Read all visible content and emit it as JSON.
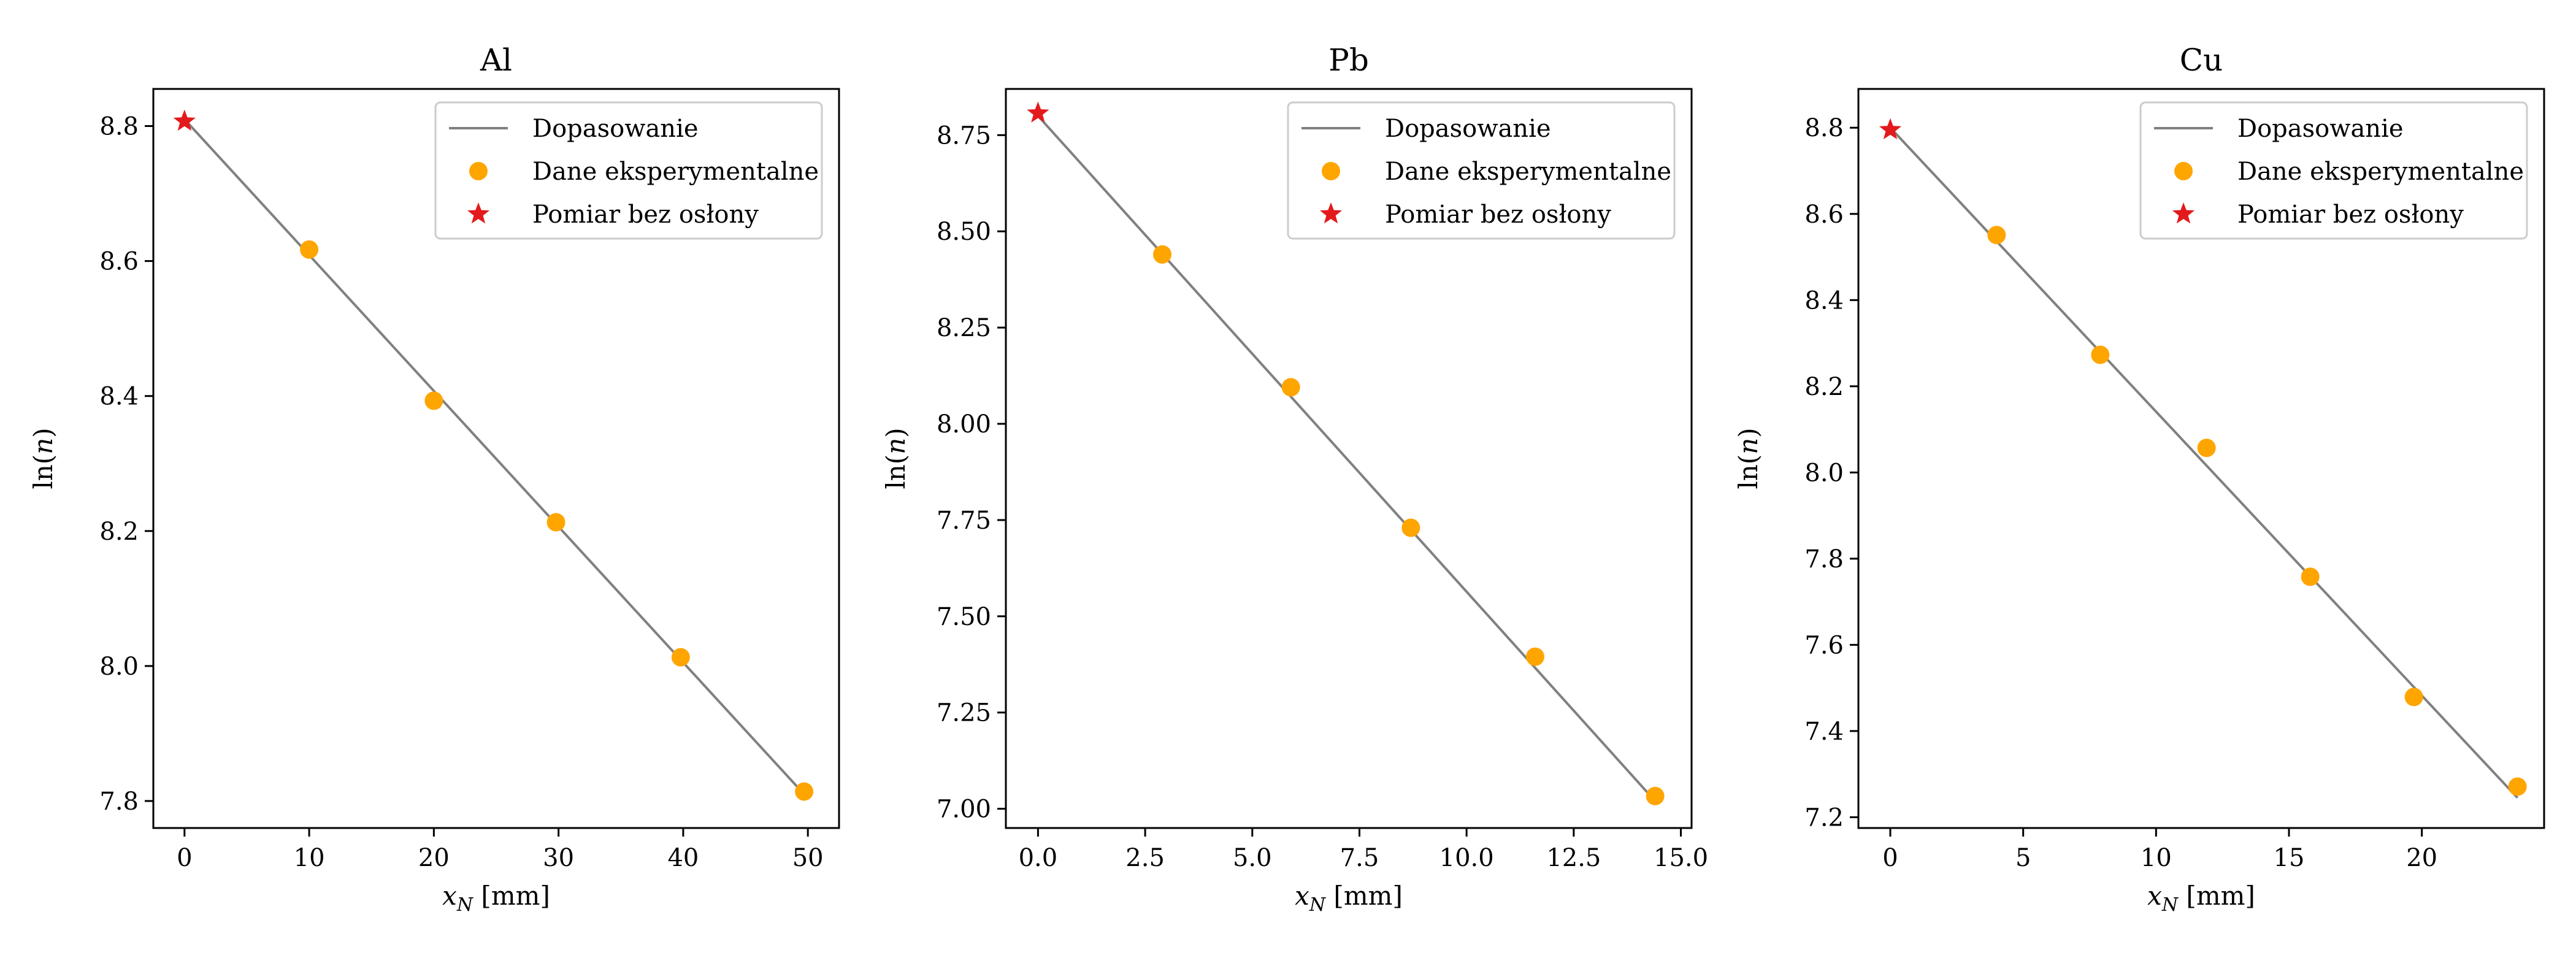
{
  "colors": {
    "fit_line": "#808080",
    "experimental": "#ffa500",
    "unshielded": "#e31a1c",
    "axes": "#000000",
    "background": "#ffffff"
  },
  "chart_data": [
    {
      "type": "scatter",
      "title": "Al",
      "xlabel": "x_N [mm]",
      "ylabel": "ln(n)",
      "xlim": [
        -2.5,
        52.5
      ],
      "ylim": [
        7.76,
        8.855
      ],
      "xticks": [
        0,
        10,
        20,
        30,
        40,
        50
      ],
      "xtick_labels": [
        "0",
        "10",
        "20",
        "30",
        "40",
        "50"
      ],
      "yticks": [
        7.8,
        8.0,
        8.2,
        8.4,
        8.6,
        8.8
      ],
      "ytick_labels": [
        "7.8",
        "8.0",
        "8.2",
        "8.4",
        "8.6",
        "8.8"
      ],
      "grid": false,
      "legend_position": "top-right",
      "series": [
        {
          "name": "Dopasowanie",
          "kind": "line",
          "x": [
            0,
            49.7
          ],
          "y": [
            8.81,
            7.81
          ]
        },
        {
          "name": "Dane eksperymentalne",
          "kind": "scatter",
          "marker": "circle",
          "x": [
            10,
            20,
            29.8,
            39.8,
            49.7
          ],
          "y": [
            8.617,
            8.393,
            8.213,
            8.013,
            7.814
          ]
        },
        {
          "name": "Pomiar bez osłony",
          "kind": "scatter",
          "marker": "star",
          "x": [
            0
          ],
          "y": [
            8.807
          ]
        }
      ]
    },
    {
      "type": "scatter",
      "title": "Pb",
      "xlabel": "x_N [mm]",
      "ylabel": "ln(n)",
      "xlim": [
        -0.75,
        15.25
      ],
      "ylim": [
        6.95,
        8.87
      ],
      "xticks": [
        0,
        2.5,
        5,
        7.5,
        10,
        12.5,
        15
      ],
      "xtick_labels": [
        "0.0",
        "2.5",
        "5.0",
        "7.5",
        "10.0",
        "12.5",
        "15.0"
      ],
      "yticks": [
        7.0,
        7.25,
        7.5,
        7.75,
        8.0,
        8.25,
        8.5,
        8.75
      ],
      "ytick_labels": [
        "7.00",
        "7.25",
        "7.50",
        "7.75",
        "8.00",
        "8.25",
        "8.50",
        "8.75"
      ],
      "grid": false,
      "legend_position": "top-right",
      "series": [
        {
          "name": "Dopasowanie",
          "kind": "line",
          "x": [
            0,
            14.4
          ],
          "y": [
            8.8,
            7.02
          ]
        },
        {
          "name": "Dane eksperymentalne",
          "kind": "scatter",
          "marker": "circle",
          "x": [
            2.9,
            5.9,
            8.7,
            11.6,
            14.4
          ],
          "y": [
            8.44,
            8.095,
            7.73,
            7.395,
            7.033
          ]
        },
        {
          "name": "Pomiar bez osłony",
          "kind": "scatter",
          "marker": "star",
          "x": [
            0
          ],
          "y": [
            8.807
          ]
        }
      ]
    },
    {
      "type": "scatter",
      "title": "Cu",
      "xlabel": "x_N [mm]",
      "ylabel": "ln(n)",
      "xlim": [
        -1.2,
        24.6
      ],
      "ylim": [
        7.175,
        8.89
      ],
      "xticks": [
        0,
        5,
        10,
        15,
        20
      ],
      "xtick_labels": [
        "0",
        "5",
        "10",
        "15",
        "20"
      ],
      "yticks": [
        7.2,
        7.4,
        7.6,
        7.8,
        8.0,
        8.2,
        8.4,
        8.6,
        8.8
      ],
      "ytick_labels": [
        "7.2",
        "7.4",
        "7.6",
        "7.8",
        "8.0",
        "8.2",
        "8.4",
        "8.6",
        "8.8"
      ],
      "grid": false,
      "legend_position": "top-right",
      "series": [
        {
          "name": "Dopasowanie",
          "kind": "line",
          "x": [
            0,
            23.6
          ],
          "y": [
            8.8,
            7.245
          ]
        },
        {
          "name": "Dane eksperymentalne",
          "kind": "scatter",
          "marker": "circle",
          "x": [
            4,
            7.9,
            11.9,
            15.8,
            19.7,
            23.6
          ],
          "y": [
            8.551,
            8.273,
            8.057,
            7.758,
            7.479,
            7.271
          ]
        },
        {
          "name": "Pomiar bez osłony",
          "kind": "scatter",
          "marker": "star",
          "x": [
            0
          ],
          "y": [
            8.795
          ]
        }
      ]
    }
  ]
}
